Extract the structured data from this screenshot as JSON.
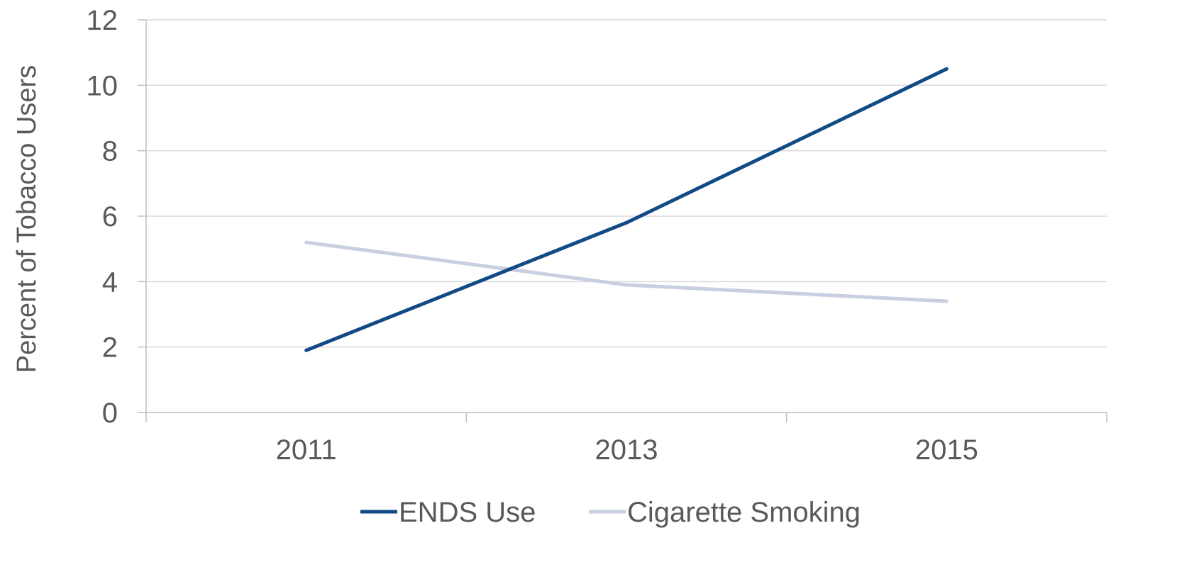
{
  "chart_data": {
    "type": "line",
    "title": "",
    "xlabel": "",
    "ylabel": "Percent of Tobacco Users",
    "categories": [
      "2011",
      "2013",
      "2015"
    ],
    "ylim": [
      0,
      12
    ],
    "yticks": [
      "0",
      "2",
      "4",
      "6",
      "8",
      "10",
      "12"
    ],
    "grid": true,
    "legend_position": "bottom",
    "series": [
      {
        "name": "ENDS Use",
        "values": [
          1.9,
          5.8,
          10.5
        ],
        "color": "#124a86"
      },
      {
        "name": "Cigarette Smoking",
        "values": [
          5.2,
          3.9,
          3.4
        ],
        "color": "#c9cfe1"
      }
    ]
  }
}
